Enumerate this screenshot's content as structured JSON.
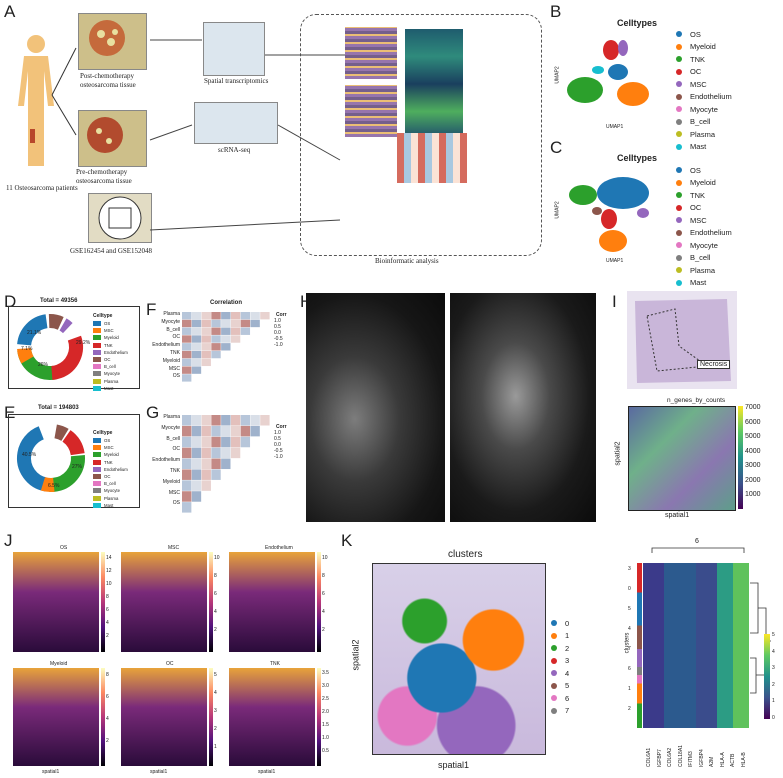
{
  "panels": {
    "A": "A",
    "B": "B",
    "C": "C",
    "D": "D",
    "E": "E",
    "F": "F",
    "G": "G",
    "H": "H",
    "I": "I",
    "J": "J",
    "K": "K"
  },
  "panel_a": {
    "patients": "11 Osteosarcoma patients",
    "post_tissue": "Post-chemotherapy\nosteosarcoma tissue",
    "pre_tissue": "Pre-chemotherapy\nosteosarcoma tissue",
    "spatial": "Spatial transcriptomics",
    "scrna": "scRNA-seq",
    "gse": "GSE162454 and GSE152048",
    "bioinfo": "Bioinformatic analysis"
  },
  "panel_b": {
    "title": "Celltypes",
    "xlabel": "UMAP1",
    "ylabel": "UMAP2"
  },
  "panel_c": {
    "title": "Celltypes",
    "xlabel": "UMAP1",
    "ylabel": "UMAP2"
  },
  "celltypes": [
    {
      "name": "OS",
      "color": "#1f77b4"
    },
    {
      "name": "Myeloid",
      "color": "#ff7f0e"
    },
    {
      "name": "TNK",
      "color": "#2ca02c"
    },
    {
      "name": "OC",
      "color": "#d62728"
    },
    {
      "name": "MSC",
      "color": "#9467bd"
    },
    {
      "name": "Endothelium",
      "color": "#8c564b"
    },
    {
      "name": "Myocyte",
      "color": "#e377c2"
    },
    {
      "name": "B_cell",
      "color": "#7f7f7f"
    },
    {
      "name": "Plasma",
      "color": "#bcbd22"
    },
    {
      "name": "Mast",
      "color": "#17becf"
    }
  ],
  "panel_d": {
    "total": "Total = 49356",
    "legend_title": "Celltype",
    "labels": [
      "OS",
      "MSC",
      "Myeloid",
      "TNK",
      "Endothelium",
      "OC",
      "B_cell",
      "Myocyte",
      "Plasma",
      "Mast"
    ],
    "slice_labels": [
      "21.1%",
      "7.1%",
      "26%",
      "29.2%"
    ]
  },
  "panel_e": {
    "total": "Total = 194803",
    "legend_title": "Celltype",
    "labels": [
      "OS",
      "MSC",
      "Myeloid",
      "TNK",
      "Endothelium",
      "OC",
      "B_cell",
      "Myocyte",
      "Plasma",
      "Mast"
    ],
    "slice_labels": [
      "40.5%",
      "6.5%",
      "27%"
    ]
  },
  "panel_f": {
    "title": "Correlation",
    "cbar_title": "Corr",
    "cbar_ticks": [
      "1.0",
      "0.5",
      "0.0",
      "-0.5",
      "-1.0"
    ],
    "rows": [
      "Plasma",
      "Myocyte",
      "B_cell",
      "OC",
      "Endothelium",
      "TNK",
      "Myeloid",
      "MSC",
      "OS"
    ]
  },
  "panel_g": {
    "cbar_title": "Corr",
    "cbar_ticks": [
      "1.0",
      "0.5",
      "0.0",
      "-0.5",
      "-1.0"
    ],
    "rows": [
      "Plasma",
      "Myocyte",
      "B_cell",
      "OC",
      "Endothelium",
      "TNK",
      "Myeloid",
      "MSC",
      "OS"
    ]
  },
  "panel_i": {
    "necrosis": "Necrosis",
    "title": "n_genes_by_counts",
    "ticks": [
      "7000",
      "6000",
      "5000",
      "4000",
      "3000",
      "2000",
      "1000"
    ],
    "xlabel": "spatial1",
    "ylabel": "spatial2"
  },
  "panel_j": {
    "maps": [
      {
        "title": "OS",
        "ticks": [
          "14",
          "12",
          "10",
          "8",
          "6",
          "4",
          "2"
        ]
      },
      {
        "title": "MSC",
        "ticks": [
          "10",
          "8",
          "6",
          "4",
          "2"
        ]
      },
      {
        "title": "Endothelium",
        "ticks": [
          "10",
          "8",
          "6",
          "4",
          "2"
        ]
      },
      {
        "title": "Myeloid",
        "ticks": [
          "8",
          "6",
          "4",
          "2"
        ]
      },
      {
        "title": "OC",
        "ticks": [
          "5",
          "4",
          "3",
          "2",
          "1"
        ]
      },
      {
        "title": "TNK",
        "ticks": [
          "3.5",
          "3.0",
          "2.5",
          "2.0",
          "1.5",
          "1.0",
          "0.5"
        ]
      }
    ],
    "xlabel": "spatial1",
    "ylabel": "spatial2"
  },
  "panel_k": {
    "title": "clusters",
    "xlabel": "spatial1",
    "ylabel": "spatial2",
    "clusters": [
      {
        "name": "0",
        "color": "#1f77b4"
      },
      {
        "name": "1",
        "color": "#ff7f0e"
      },
      {
        "name": "2",
        "color": "#2ca02c"
      },
      {
        "name": "3",
        "color": "#d62728"
      },
      {
        "name": "4",
        "color": "#9467bd"
      },
      {
        "name": "5",
        "color": "#8c564b"
      },
      {
        "name": "6",
        "color": "#e377c2"
      },
      {
        "name": "7",
        "color": "#7f7f7f"
      }
    ],
    "heatmap_top": "6",
    "heatmap_ylabel": "clusters",
    "heatmap_row_labels": [
      "3",
      "0",
      "5",
      "4",
      "7",
      "6",
      "1",
      "2"
    ],
    "genes": [
      "COL6A1",
      "IGFBP7",
      "COL6A2",
      "COL18A1",
      "IFITM3",
      "IGFBP4",
      "A2M",
      "HLA-A",
      "ACTB",
      "HLA-B"
    ],
    "cbar_ticks": [
      "5",
      "4",
      "3",
      "2",
      "1",
      "0"
    ]
  }
}
